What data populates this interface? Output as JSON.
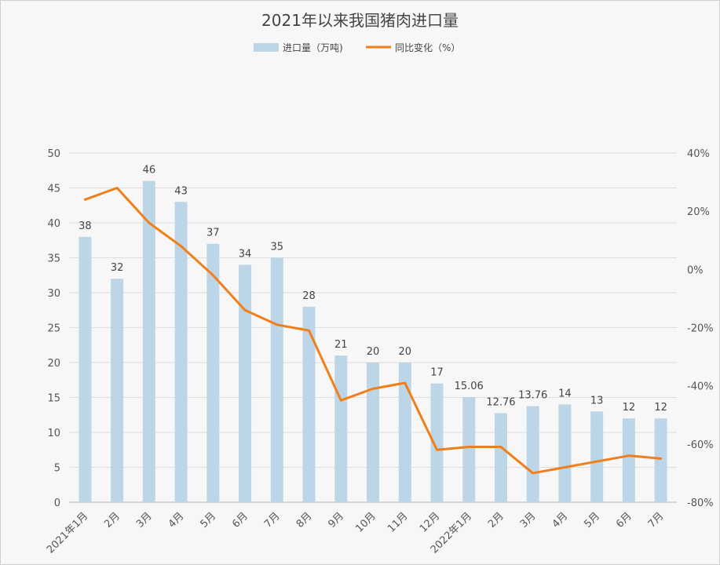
{
  "chart_data": {
    "type": "bar",
    "title": "2021年以来我国猪肉进口量",
    "categories": [
      "2021年1月",
      "2月",
      "3月",
      "4月",
      "5月",
      "6月",
      "7月",
      "8月",
      "9月",
      "10月",
      "11月",
      "12月",
      "2022年1月",
      "2月",
      "3月",
      "4月",
      "5月",
      "6月",
      "7月"
    ],
    "series": [
      {
        "name": "进口量（万吨)",
        "type": "bar",
        "axis": "left",
        "color": "#bcd6e8",
        "values": [
          38,
          32,
          46,
          43,
          37,
          34,
          35,
          28,
          21,
          20,
          20,
          17,
          15.06,
          12.76,
          13.76,
          14,
          13,
          12,
          12
        ],
        "labels": [
          "38",
          "32",
          "46",
          "43",
          "37",
          "34",
          "35",
          "28",
          "21",
          "20",
          "20",
          "17",
          "15.06",
          "12.76",
          "13.76",
          "14",
          "13",
          "12",
          "12"
        ]
      },
      {
        "name": "同比变化（%）",
        "type": "line",
        "axis": "right",
        "color": "#f07f1a",
        "values": [
          24,
          28,
          16,
          8,
          -2,
          -14,
          -19,
          -21,
          -45,
          -41,
          -39,
          -62,
          -61,
          -61,
          -70,
          -68,
          -66,
          -64,
          -65
        ]
      }
    ],
    "y_left": {
      "min": 0,
      "max": 50,
      "step": 5,
      "ticks": [
        "0",
        "5",
        "10",
        "15",
        "20",
        "25",
        "30",
        "35",
        "40",
        "45",
        "50"
      ]
    },
    "y_right": {
      "min": -80,
      "max": 40,
      "step": 20,
      "ticks": [
        "-80%",
        "-60%",
        "-40%",
        "-20%",
        "0%",
        "20%",
        "40%"
      ]
    },
    "grid": true,
    "legend_position": "top-center"
  }
}
